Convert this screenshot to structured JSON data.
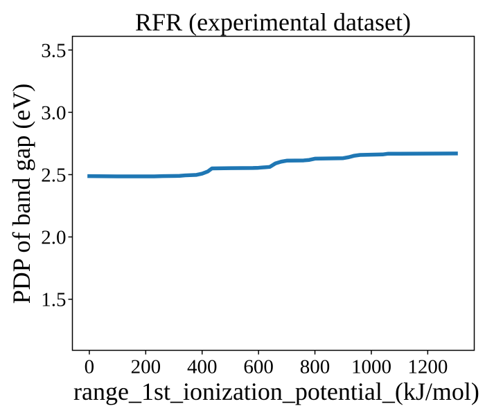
{
  "chart_data": {
    "type": "line",
    "title": "RFR (experimental dataset)",
    "xlabel": "range_1st_ionization_potential_(kJ/mol)",
    "ylabel": "PDP of band gap (eV)",
    "xlim": [
      -60,
      1365
    ],
    "ylim": [
      1.09,
      3.61
    ],
    "xticks": [
      0,
      200,
      400,
      600,
      800,
      1000,
      1200
    ],
    "yticks": [
      1.5,
      2.0,
      2.5,
      3.0,
      3.5
    ],
    "xtick_labels": [
      "0",
      "200",
      "400",
      "600",
      "800",
      "1000",
      "1200"
    ],
    "ytick_labels": [
      "1.5",
      "2.0",
      "2.5",
      "3.0",
      "3.5"
    ],
    "grid": false,
    "series": [
      {
        "color": "#1f77b4",
        "x": [
          0,
          100,
          230,
          260,
          320,
          340,
          380,
          400,
          420,
          435,
          500,
          580,
          600,
          640,
          660,
          680,
          700,
          760,
          780,
          800,
          860,
          900,
          920,
          940,
          960,
          1000,
          1040,
          1060,
          1100,
          1300
        ],
        "y": [
          2.488,
          2.486,
          2.486,
          2.488,
          2.49,
          2.494,
          2.498,
          2.508,
          2.525,
          2.55,
          2.552,
          2.553,
          2.555,
          2.562,
          2.59,
          2.604,
          2.612,
          2.614,
          2.618,
          2.628,
          2.63,
          2.632,
          2.64,
          2.652,
          2.658,
          2.66,
          2.662,
          2.668,
          2.668,
          2.67
        ]
      }
    ]
  }
}
